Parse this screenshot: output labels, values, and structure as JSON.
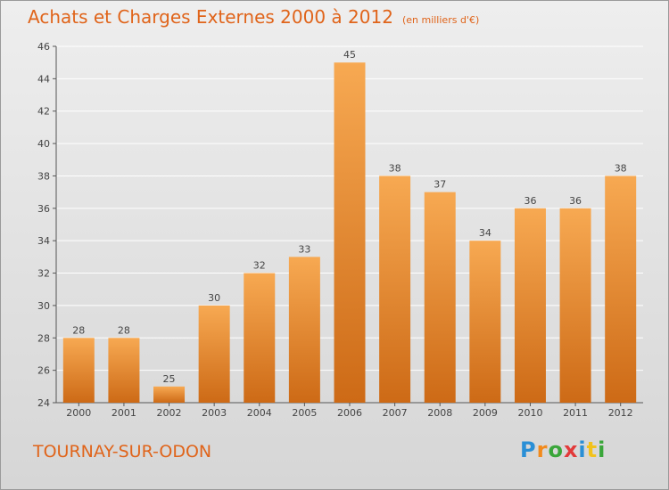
{
  "header": {
    "title": "Achats et Charges Externes 2000 à 2012",
    "subtitle": "(en milliers d'€)"
  },
  "footer": {
    "commune": "TOURNAY-SUR-ODON",
    "logo": [
      "P",
      "r",
      "o",
      "x",
      "i",
      "t",
      "i"
    ],
    "logo_colors": [
      "#2a8fd6",
      "#f28a1c",
      "#3aa63a",
      "#e23a3a",
      "#2a8fd6",
      "#f2c21c",
      "#3aa63a"
    ]
  },
  "colors": {
    "bar_top": "#f7a952",
    "bar_bottom": "#cd6a16",
    "accent": "#e0641a",
    "grid": "#ffffff"
  },
  "chart_data": {
    "type": "bar",
    "title": "Achats et Charges Externes 2000 à 2012",
    "subtitle": "(en milliers d'€)",
    "categories": [
      "2000",
      "2001",
      "2002",
      "2003",
      "2004",
      "2005",
      "2006",
      "2007",
      "2008",
      "2009",
      "2010",
      "2011",
      "2012"
    ],
    "values": [
      28,
      28,
      25,
      30,
      32,
      33,
      45,
      38,
      37,
      34,
      36,
      36,
      38
    ],
    "ylim": [
      24,
      46
    ],
    "yticks": [
      24,
      26,
      28,
      30,
      32,
      34,
      36,
      38,
      40,
      42,
      44,
      46
    ],
    "xlabel": "",
    "ylabel": "",
    "grid": true,
    "data_labels": true
  }
}
